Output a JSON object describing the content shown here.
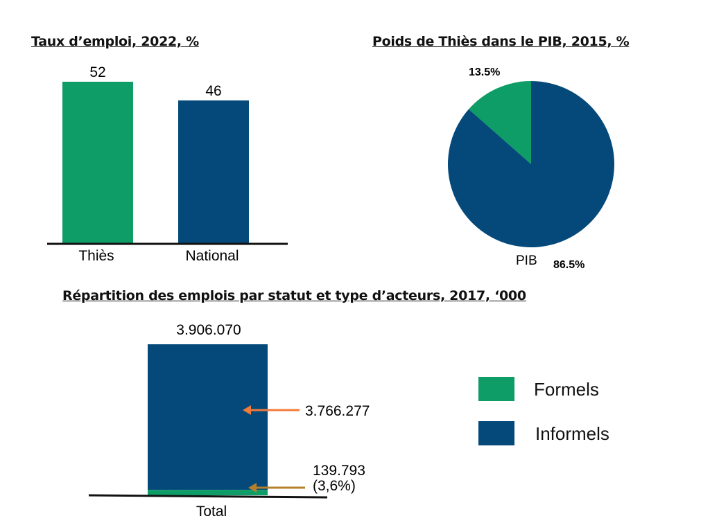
{
  "colors": {
    "formels": "#0e9d66",
    "informels": "#04497a",
    "arrow_orange": "#f07b3a",
    "arrow_gold": "#b5802a"
  },
  "chart_data": [
    {
      "type": "bar",
      "title": "Taux d’emploi, 2022, %",
      "categories": [
        "Thiès",
        "National"
      ],
      "values": [
        52,
        46
      ],
      "value_labels": [
        "52",
        "46"
      ],
      "ylim": [
        0,
        60
      ],
      "grid": false,
      "legend": "none"
    },
    {
      "type": "pie",
      "title": "Poids de Thiès dans le PIB, 2015, %",
      "slices": [
        {
          "value": 13.5,
          "label": "13.5%",
          "color": "#0e9d66"
        },
        {
          "value": 86.5,
          "label": "86.5%",
          "color": "#04497a"
        }
      ],
      "category_label": "PIB"
    },
    {
      "type": "bar",
      "stacked": true,
      "title": "Répartition des emplois par statut et type d’acteurs, 2017, ‘000",
      "categories": [
        "Total"
      ],
      "total": 3906070,
      "total_label": "3.906.070",
      "series": [
        {
          "name": "Formels",
          "values": [
            139793
          ],
          "label": "139.793",
          "share_label": "(3,6%)"
        },
        {
          "name": "Informels",
          "values": [
            3766277
          ],
          "label": "3.766.277"
        }
      ],
      "legend": "right"
    }
  ]
}
